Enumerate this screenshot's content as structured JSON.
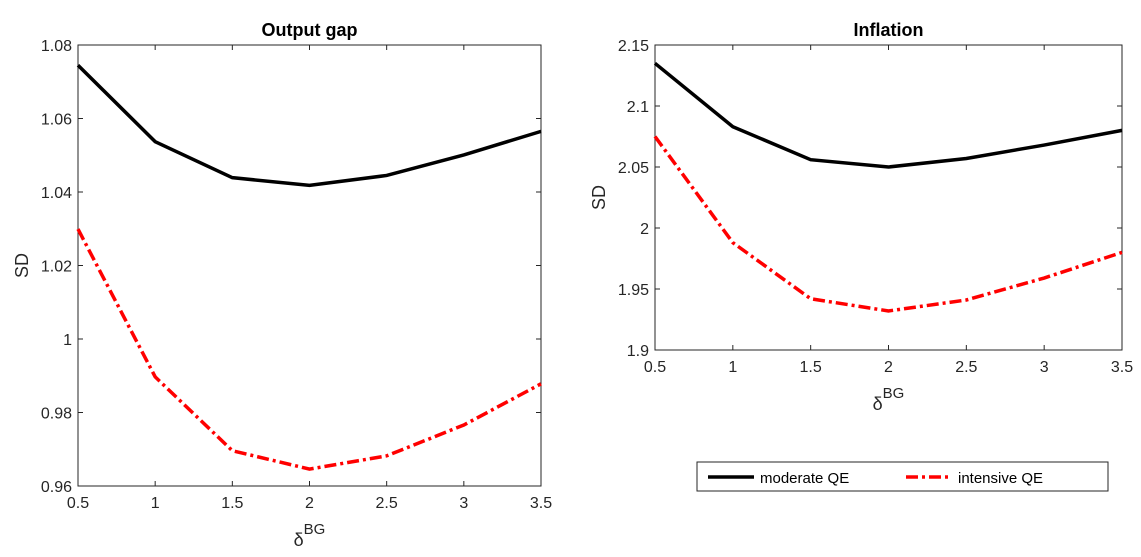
{
  "chart_data": [
    {
      "type": "line",
      "title": "Output gap",
      "ylabel": "SD",
      "xlabel": {
        "base": "δ",
        "sup": "BG"
      },
      "x": [
        0.5,
        1,
        1.5,
        2,
        2.5,
        3,
        3.5
      ],
      "series": [
        {
          "name": "moderate QE",
          "color": "#000000",
          "dash": "solid",
          "values": [
            1.0745,
            1.0537,
            1.0439,
            1.0418,
            1.0445,
            1.0501,
            1.0565
          ]
        },
        {
          "name": "intensive QE",
          "color": "#ff0000",
          "dash": "dashdot",
          "values": [
            1.0299,
            0.9897,
            0.9696,
            0.9646,
            0.9682,
            0.9766,
            0.9878
          ]
        }
      ],
      "xlim": [
        0.5,
        3.5
      ],
      "xticks": [
        0.5,
        1,
        1.5,
        2,
        2.5,
        3,
        3.5
      ],
      "ylim": [
        0.96,
        1.08
      ],
      "yticks": [
        0.96,
        0.98,
        1,
        1.02,
        1.04,
        1.06,
        1.08
      ]
    },
    {
      "type": "line",
      "title": "Inflation",
      "ylabel": "SD",
      "xlabel": {
        "base": "δ",
        "sup": "BG"
      },
      "x": [
        0.5,
        1,
        1.5,
        2,
        2.5,
        3,
        3.5
      ],
      "series": [
        {
          "name": "moderate QE",
          "color": "#000000",
          "dash": "solid",
          "values": [
            2.135,
            2.083,
            2.056,
            2.05,
            2.057,
            2.068,
            2.08
          ]
        },
        {
          "name": "intensive QE",
          "color": "#ff0000",
          "dash": "dashdot",
          "values": [
            2.075,
            1.988,
            1.942,
            1.932,
            1.941,
            1.959,
            1.98
          ]
        }
      ],
      "xlim": [
        0.5,
        3.5
      ],
      "xticks": [
        0.5,
        1,
        1.5,
        2,
        2.5,
        3,
        3.5
      ],
      "ylim": [
        1.9,
        2.15
      ],
      "yticks": [
        1.9,
        1.95,
        2,
        2.05,
        2.1,
        2.15
      ]
    }
  ]
}
